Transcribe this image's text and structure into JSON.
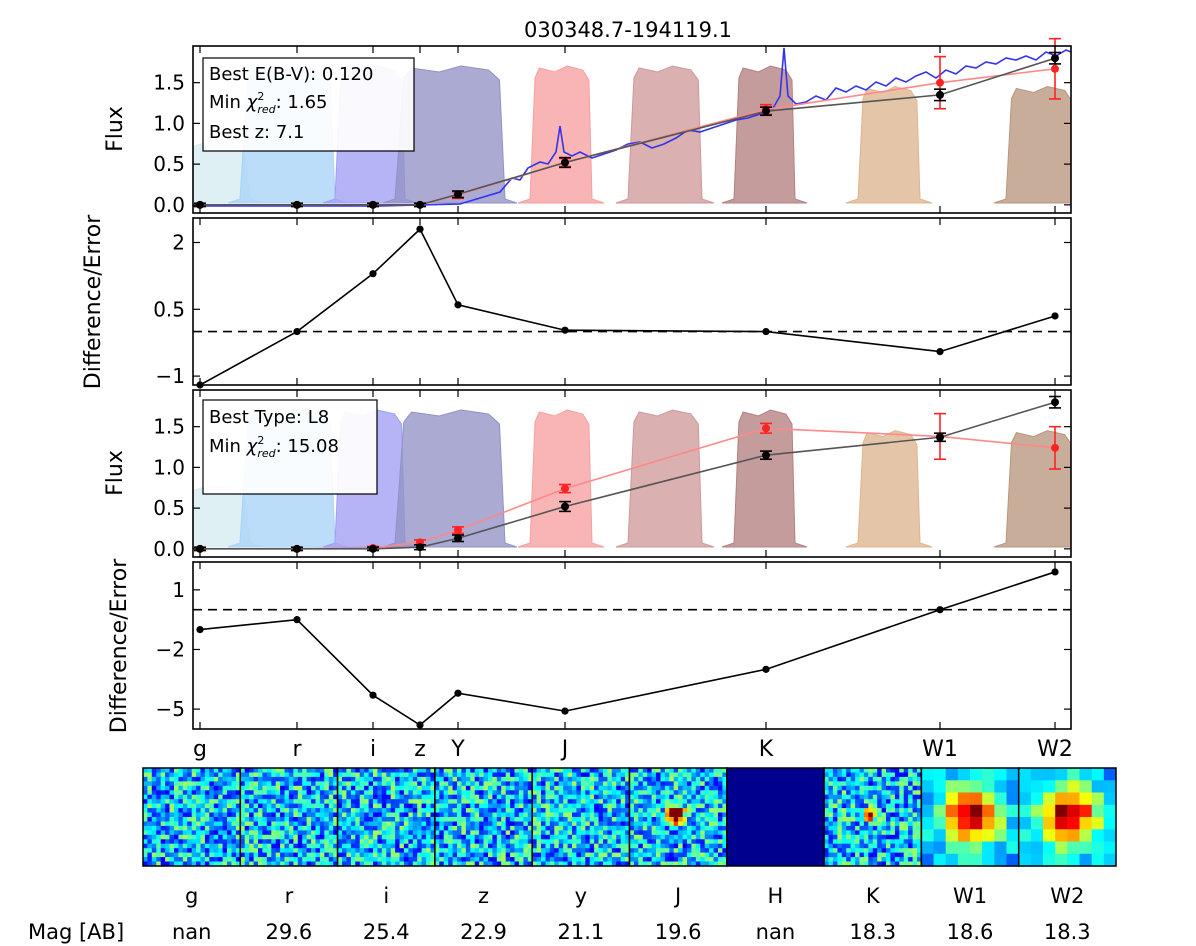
{
  "title": "030348.7-194119.1",
  "colors": {
    "model_line": "#3333ee",
    "observed": "#000000",
    "model_phot": "#ff2222",
    "filters": [
      "#d6ecf2",
      "#a9d3f7",
      "#9f9ff5",
      "#9292c6",
      "#f7a0a0",
      "#cf9a9a",
      "#b48080",
      "#deb58e",
      "#b8967d"
    ]
  },
  "info_top": {
    "line1": "Best E(B-V): 0.120",
    "line2_prefix": "Min ",
    "chi_symbol": "χ",
    "chi_sup": "2",
    "chi_sub": "red",
    "line2_value": ": 1.65",
    "line3": "Best z: 7.1"
  },
  "info_bottom": {
    "line1": "Best Type: L8",
    "line2_prefix": "Min ",
    "chi_symbol": "χ",
    "chi_sup": "2",
    "chi_sub": "red",
    "line2_value": ": 15.08"
  },
  "axis_labels": {
    "flux": "Flux",
    "diff": "Difference/Error"
  },
  "filter_labels": [
    "g",
    "r",
    "i",
    "z",
    "Y",
    "J",
    "K",
    "W1",
    "W2"
  ],
  "mag_label": "Mag [AB]",
  "thumbnails": [
    {
      "band": "g",
      "mag": "nan",
      "kind": "noise"
    },
    {
      "band": "r",
      "mag": "29.6",
      "kind": "noise"
    },
    {
      "band": "i",
      "mag": "25.4",
      "kind": "noise"
    },
    {
      "band": "z",
      "mag": "22.9",
      "kind": "noise"
    },
    {
      "band": "y",
      "mag": "21.1",
      "kind": "noise"
    },
    {
      "band": "J",
      "mag": "19.6",
      "kind": "source"
    },
    {
      "band": "H",
      "mag": "nan",
      "kind": "blank"
    },
    {
      "band": "K",
      "mag": "18.3",
      "kind": "faint"
    },
    {
      "band": "W1",
      "mag": "18.6",
      "kind": "wise"
    },
    {
      "band": "W2",
      "mag": "18.3",
      "kind": "wise"
    }
  ],
  "chart_data": [
    {
      "type": "line",
      "panel": "flux_galaxy",
      "ylabel": "Flux",
      "ylim": [
        -0.1,
        1.95
      ],
      "yticks": [
        0.0,
        0.5,
        1.0,
        1.5
      ],
      "x_bands": [
        "g",
        "r",
        "i",
        "z",
        "Y",
        "J",
        "K",
        "W1",
        "W2"
      ],
      "series": [
        {
          "values": [
            0.0,
            0.0,
            0.0,
            0.0,
            0.13,
            0.52,
            1.15,
            1.35,
            1.8
          ],
          "errors": [
            0.02,
            0.02,
            0.02,
            0.02,
            0.04,
            0.06,
            0.05,
            0.07,
            0.07
          ]
        },
        {
          "values": [
            0.0,
            0.0,
            0.0,
            0.0,
            0.12,
            0.52,
            1.17,
            1.5,
            1.67
          ],
          "errors": [
            0.02,
            0.02,
            0.02,
            0.02,
            0.04,
            0.05,
            0.06,
            0.32,
            0.37
          ]
        }
      ]
    },
    {
      "type": "line",
      "panel": "diff_galaxy",
      "ylabel": "Difference/Error",
      "ylim": [
        -1.2,
        2.55
      ],
      "yticks": [
        -1.0,
        0.5,
        2.0
      ],
      "x_bands": [
        "g",
        "r",
        "i",
        "z",
        "Y",
        "J",
        "K",
        "W1",
        "W2"
      ],
      "reference_line": 0.0,
      "values": [
        -1.2,
        0.0,
        1.3,
        2.3,
        0.6,
        0.03,
        0.0,
        -0.45,
        0.35
      ]
    },
    {
      "type": "line",
      "panel": "flux_star",
      "ylabel": "Flux",
      "ylim": [
        -0.1,
        1.95
      ],
      "yticks": [
        0.0,
        0.5,
        1.0,
        1.5
      ],
      "x_bands": [
        "g",
        "r",
        "i",
        "z",
        "Y",
        "J",
        "K",
        "W1",
        "W2"
      ],
      "series": [
        {
          "values": [
            0.0,
            0.0,
            0.0,
            0.02,
            0.13,
            0.52,
            1.15,
            1.37,
            1.8
          ],
          "errors": [
            0.02,
            0.02,
            0.02,
            0.03,
            0.04,
            0.06,
            0.05,
            0.05,
            0.07
          ]
        },
        {
          "values": [
            0.0,
            0.0,
            0.01,
            0.08,
            0.23,
            0.74,
            1.48,
            1.38,
            1.24
          ],
          "errors": [
            0.02,
            0.02,
            0.02,
            0.03,
            0.04,
            0.05,
            0.06,
            0.28,
            0.26
          ]
        }
      ]
    },
    {
      "type": "line",
      "panel": "diff_star",
      "ylabel": "Difference/Error",
      "ylim": [
        -6.0,
        2.4
      ],
      "yticks": [
        -5,
        -2,
        1
      ],
      "x_bands": [
        "g",
        "r",
        "i",
        "z",
        "Y",
        "J",
        "K",
        "W1",
        "W2"
      ],
      "reference_line": 0.0,
      "values": [
        -1.0,
        -0.5,
        -4.3,
        -5.8,
        -4.2,
        -5.1,
        -3.0,
        0.0,
        1.9
      ]
    }
  ]
}
